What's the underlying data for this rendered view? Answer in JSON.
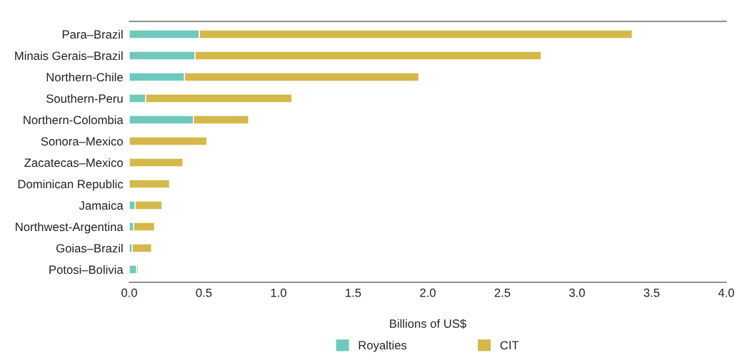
{
  "chart_data": {
    "type": "bar",
    "orientation": "horizontal",
    "stacked": true,
    "categories": [
      "Para–Brazil",
      "Minais Gerais–Brazil",
      "Northern-Chile",
      "Southern-Peru",
      "Northern-Colombia",
      "Sonora–Mexico",
      "Zacatecas–Mexico",
      "Dominican Republic",
      "Jamaica",
      "Northwest-Argentina",
      "Goias–Brazil",
      "Potosi–Bolivia"
    ],
    "series": [
      {
        "name": "Royalties",
        "color": "#6fc8bc",
        "values": [
          0.47,
          0.44,
          0.37,
          0.11,
          0.43,
          0,
          0,
          0,
          0.04,
          0.03,
          0.02,
          0.05
        ]
      },
      {
        "name": "CIT",
        "color": "#d4b84a",
        "values": [
          2.9,
          2.32,
          1.57,
          0.98,
          0.37,
          0.52,
          0.36,
          0.27,
          0.18,
          0.14,
          0.13,
          0.01
        ]
      }
    ],
    "xlim": [
      0,
      4
    ],
    "xticks": [
      {
        "value": 0,
        "label": "0.0"
      },
      {
        "value": 0.5,
        "label": "0.5"
      },
      {
        "value": 1,
        "label": "1.0"
      },
      {
        "value": 1.5,
        "label": "1.5"
      },
      {
        "value": 2,
        "label": "2.0"
      },
      {
        "value": 2.5,
        "label": "2.5"
      },
      {
        "value": 3,
        "label": "3.0"
      },
      {
        "value": 3.5,
        "label": "3.5"
      },
      {
        "value": 4,
        "label": "4.0"
      }
    ],
    "xlabel": "Billions of US$",
    "legend": "bottom",
    "grid": false
  }
}
